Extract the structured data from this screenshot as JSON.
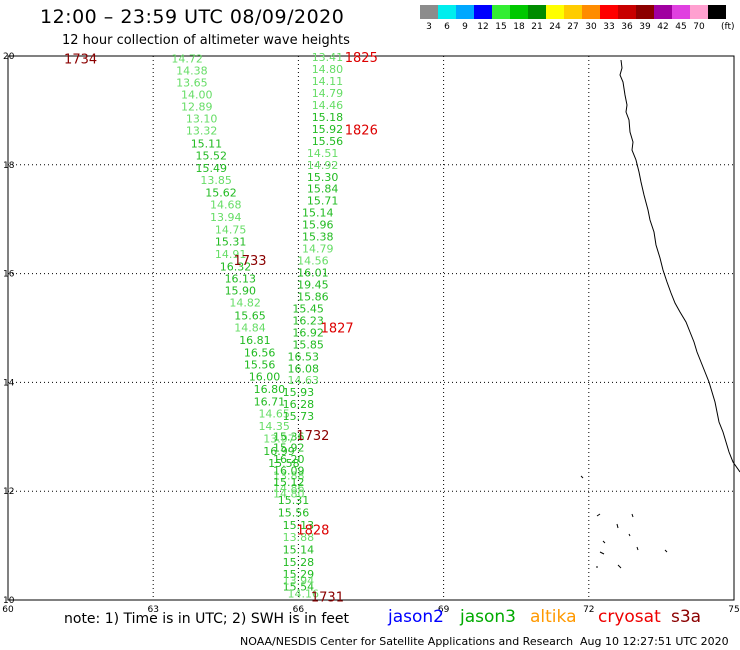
{
  "header": {
    "title": "12:00 – 23:59 UTC 08/09/2020",
    "subtitle": "12 hour collection of altimeter wave heights"
  },
  "color_scale": {
    "unit": "(ft)",
    "bins": [
      {
        "label": "3",
        "color": "#8c8c8c"
      },
      {
        "label": "6",
        "color": "#00eeee"
      },
      {
        "label": "9",
        "color": "#00a8ff"
      },
      {
        "label": "12",
        "color": "#0000ff"
      },
      {
        "label": "15",
        "color": "#33ee33"
      },
      {
        "label": "18",
        "color": "#00c800"
      },
      {
        "label": "21",
        "color": "#008c00"
      },
      {
        "label": "24",
        "color": "#ffff00"
      },
      {
        "label": "27",
        "color": "#ffcc00"
      },
      {
        "label": "30",
        "color": "#ff8c00"
      },
      {
        "label": "33",
        "color": "#ff0000"
      },
      {
        "label": "36",
        "color": "#c80000"
      },
      {
        "label": "39",
        "color": "#8c0000"
      },
      {
        "label": "42",
        "color": "#a000a0"
      },
      {
        "label": "45",
        "color": "#e040e0"
      },
      {
        "label": "70",
        "color": "#ffa0d0"
      },
      {
        "label": "",
        "color": "#000000"
      }
    ]
  },
  "map": {
    "lon_ticks": [
      "60",
      "63",
      "66",
      "69",
      "72",
      "75"
    ],
    "lat_ticks": [
      "20",
      "18",
      "16",
      "14",
      "12",
      "10"
    ],
    "tracks": [
      {
        "label_color": "#8b0000",
        "time_labels": [
          {
            "text": "1734",
            "lon": 61.5,
            "lat": 19.95
          },
          {
            "text": "1733",
            "lon": 65.0,
            "lat": 16.25
          }
        ],
        "points": [
          {
            "v": "14.72",
            "lon": 63.7,
            "lat": 19.95,
            "c": "#66dd66"
          },
          {
            "v": "14.38",
            "lon": 63.8,
            "lat": 19.73,
            "c": "#66dd66"
          },
          {
            "v": "13.65",
            "lon": 63.8,
            "lat": 19.51,
            "c": "#66dd66"
          },
          {
            "v": "14.00",
            "lon": 63.9,
            "lat": 19.29,
            "c": "#66dd66"
          },
          {
            "v": "12.89",
            "lon": 63.9,
            "lat": 19.07,
            "c": "#66dd66"
          },
          {
            "v": "13.10",
            "lon": 64.0,
            "lat": 18.85,
            "c": "#66dd66"
          },
          {
            "v": "13.32",
            "lon": 64.0,
            "lat": 18.63,
            "c": "#66dd66"
          },
          {
            "v": "15.11",
            "lon": 64.1,
            "lat": 18.39,
            "c": "#22bb22"
          },
          {
            "v": "15.52",
            "lon": 64.2,
            "lat": 18.17,
            "c": "#22bb22"
          },
          {
            "v": "15.49",
            "lon": 64.2,
            "lat": 17.94,
            "c": "#22bb22"
          },
          {
            "v": "13.85",
            "lon": 64.3,
            "lat": 17.72,
            "c": "#66dd66"
          },
          {
            "v": "15.62",
            "lon": 64.4,
            "lat": 17.49,
            "c": "#22bb22"
          },
          {
            "v": "14.68",
            "lon": 64.5,
            "lat": 17.27,
            "c": "#66dd66"
          },
          {
            "v": "13.94",
            "lon": 64.5,
            "lat": 17.04,
            "c": "#66dd66"
          },
          {
            "v": "14.75",
            "lon": 64.6,
            "lat": 16.81,
            "c": "#66dd66"
          },
          {
            "v": "15.31",
            "lon": 64.6,
            "lat": 16.59,
            "c": "#22bb22"
          },
          {
            "v": "14.91",
            "lon": 64.6,
            "lat": 16.36,
            "c": "#66dd66"
          },
          {
            "v": "16.32",
            "lon": 64.7,
            "lat": 16.13,
            "c": "#22bb22"
          },
          {
            "v": "16.13",
            "lon": 64.8,
            "lat": 15.91,
            "c": "#22bb22"
          },
          {
            "v": "15.90",
            "lon": 64.8,
            "lat": 15.69,
            "c": "#22bb22"
          },
          {
            "v": "14.82",
            "lon": 64.9,
            "lat": 15.47,
            "c": "#66dd66"
          },
          {
            "v": "15.65",
            "lon": 65.0,
            "lat": 15.23,
            "c": "#22bb22"
          },
          {
            "v": "14.84",
            "lon": 65.0,
            "lat": 15.01,
            "c": "#66dd66"
          },
          {
            "v": "16.81",
            "lon": 65.1,
            "lat": 14.78,
            "c": "#22bb22"
          },
          {
            "v": "16.56",
            "lon": 65.2,
            "lat": 14.55,
            "c": "#22bb22"
          },
          {
            "v": "15.56",
            "lon": 65.2,
            "lat": 14.33,
            "c": "#22bb22"
          },
          {
            "v": "16.00",
            "lon": 65.3,
            "lat": 14.11,
            "c": "#22bb22"
          },
          {
            "v": "16.80",
            "lon": 65.4,
            "lat": 13.88,
            "c": "#22bb22"
          },
          {
            "v": "16.71",
            "lon": 65.4,
            "lat": 13.65,
            "c": "#22bb22"
          },
          {
            "v": "14.65",
            "lon": 65.5,
            "lat": 13.43,
            "c": "#66dd66"
          },
          {
            "v": "14.35",
            "lon": 65.5,
            "lat": 13.2,
            "c": "#66dd66"
          },
          {
            "v": "13.97",
            "lon": 65.6,
            "lat": 12.97,
            "c": "#66dd66"
          },
          {
            "v": "16.99",
            "lon": 65.6,
            "lat": 12.74,
            "c": "#22bb22"
          },
          {
            "v": "15.58",
            "lon": 65.7,
            "lat": 12.52,
            "c": "#22bb22"
          },
          {
            "v": "13.88",
            "lon": 65.8,
            "lat": 12.29,
            "c": "#66dd66"
          },
          {
            "v": "14.86",
            "lon": 65.8,
            "lat": 12.06,
            "c": "#66dd66"
          },
          {
            "v": "15.31",
            "lon": 65.9,
            "lat": 11.84,
            "c": "#22bb22"
          },
          {
            "v": "15.56",
            "lon": 65.9,
            "lat": 11.61,
            "c": "#22bb22"
          },
          {
            "v": "15.13",
            "lon": 66.0,
            "lat": 11.38,
            "c": "#22bb22"
          },
          {
            "v": "13.88",
            "lon": 66.0,
            "lat": 11.16,
            "c": "#66dd66"
          },
          {
            "v": "15.14",
            "lon": 66.0,
            "lat": 10.93,
            "c": "#22bb22"
          },
          {
            "v": "15.28",
            "lon": 66.0,
            "lat": 10.7,
            "c": "#22bb22"
          },
          {
            "v": "15.29",
            "lon": 66.0,
            "lat": 10.48,
            "c": "#22bb22"
          },
          {
            "v": "15.54",
            "lon": 66.0,
            "lat": 10.25,
            "c": "#22bb22"
          }
        ]
      },
      {
        "label_color": "#8b0000",
        "time_labels": [
          {
            "text": "1732",
            "lon": 66.3,
            "lat": 13.03
          },
          {
            "text": "1731",
            "lon": 66.6,
            "lat": 10.06
          }
        ],
        "points": [
          {
            "v": "15.36",
            "lon": 65.8,
            "lat": 13.01,
            "c": "#22bb22"
          },
          {
            "v": "15.92",
            "lon": 65.8,
            "lat": 12.8,
            "c": "#22bb22"
          },
          {
            "v": "16.20",
            "lon": 65.8,
            "lat": 12.59,
            "c": "#22bb22"
          },
          {
            "v": "16.09",
            "lon": 65.8,
            "lat": 12.38,
            "c": "#22bb22"
          },
          {
            "v": "15.12",
            "lon": 65.8,
            "lat": 12.17,
            "c": "#22bb22"
          },
          {
            "v": "14.80",
            "lon": 65.8,
            "lat": 11.96,
            "c": "#66dd66"
          },
          {
            "v": "13.94",
            "lon": 66.0,
            "lat": 10.36,
            "c": "#66dd66"
          },
          {
            "v": "14.16",
            "lon": 66.1,
            "lat": 10.12,
            "c": "#66dd66"
          }
        ]
      },
      {
        "label_color": "#dd0000",
        "time_labels": [
          {
            "text": "1825",
            "lon": 67.3,
            "lat": 19.98
          },
          {
            "text": "1826",
            "lon": 67.3,
            "lat": 18.65
          },
          {
            "text": "1827",
            "lon": 66.8,
            "lat": 15.01
          },
          {
            "text": "1828",
            "lon": 66.3,
            "lat": 11.3
          }
        ],
        "points": [
          {
            "v": "13.41",
            "lon": 66.6,
            "lat": 19.98,
            "c": "#66dd66"
          },
          {
            "v": "14.80",
            "lon": 66.6,
            "lat": 19.76,
            "c": "#66dd66"
          },
          {
            "v": "14.11",
            "lon": 66.6,
            "lat": 19.54,
            "c": "#66dd66"
          },
          {
            "v": "14.79",
            "lon": 66.6,
            "lat": 19.32,
            "c": "#66dd66"
          },
          {
            "v": "14.46",
            "lon": 66.6,
            "lat": 19.1,
            "c": "#66dd66"
          },
          {
            "v": "15.18",
            "lon": 66.6,
            "lat": 18.88,
            "c": "#22bb22"
          },
          {
            "v": "15.92",
            "lon": 66.6,
            "lat": 18.66,
            "c": "#22bb22"
          },
          {
            "v": "15.56",
            "lon": 66.6,
            "lat": 18.44,
            "c": "#22bb22"
          },
          {
            "v": "14.51",
            "lon": 66.5,
            "lat": 18.22,
            "c": "#66dd66"
          },
          {
            "v": "14.92",
            "lon": 66.5,
            "lat": 18.0,
            "c": "#66dd66"
          },
          {
            "v": "15.30",
            "lon": 66.5,
            "lat": 17.78,
            "c": "#22bb22"
          },
          {
            "v": "15.84",
            "lon": 66.5,
            "lat": 17.56,
            "c": "#22bb22"
          },
          {
            "v": "15.71",
            "lon": 66.5,
            "lat": 17.34,
            "c": "#22bb22"
          },
          {
            "v": "15.14",
            "lon": 66.4,
            "lat": 17.12,
            "c": "#22bb22"
          },
          {
            "v": "15.96",
            "lon": 66.4,
            "lat": 16.9,
            "c": "#22bb22"
          },
          {
            "v": "15.38",
            "lon": 66.4,
            "lat": 16.68,
            "c": "#22bb22"
          },
          {
            "v": "14.79",
            "lon": 66.4,
            "lat": 16.46,
            "c": "#66dd66"
          },
          {
            "v": "14.56",
            "lon": 66.3,
            "lat": 16.24,
            "c": "#66dd66"
          },
          {
            "v": "16.01",
            "lon": 66.3,
            "lat": 16.02,
            "c": "#22bb22"
          },
          {
            "v": "19.45",
            "lon": 66.3,
            "lat": 15.8,
            "c": "#22bb22"
          },
          {
            "v": "15.86",
            "lon": 66.3,
            "lat": 15.58,
            "c": "#22bb22"
          },
          {
            "v": "15.45",
            "lon": 66.2,
            "lat": 15.36,
            "c": "#22bb22"
          },
          {
            "v": "16.23",
            "lon": 66.2,
            "lat": 15.14,
            "c": "#22bb22"
          },
          {
            "v": "16.92",
            "lon": 66.2,
            "lat": 14.92,
            "c": "#22bb22"
          },
          {
            "v": "15.85",
            "lon": 66.2,
            "lat": 14.7,
            "c": "#22bb22"
          },
          {
            "v": "16.53",
            "lon": 66.1,
            "lat": 14.48,
            "c": "#22bb22"
          },
          {
            "v": "16.08",
            "lon": 66.1,
            "lat": 14.26,
            "c": "#22bb22"
          },
          {
            "v": "14.63",
            "lon": 66.1,
            "lat": 14.04,
            "c": "#66dd66"
          },
          {
            "v": "15.93",
            "lon": 66.0,
            "lat": 13.82,
            "c": "#22bb22"
          },
          {
            "v": "16.28",
            "lon": 66.0,
            "lat": 13.6,
            "c": "#22bb22"
          },
          {
            "v": "15.73",
            "lon": 66.0,
            "lat": 13.38,
            "c": "#22bb22"
          }
        ]
      }
    ]
  },
  "note": "note: 1) Time is in UTC; 2) SWH is in feet",
  "satellites": [
    {
      "name": "jason2",
      "color": "#0000ff"
    },
    {
      "name": "jason3",
      "color": "#00aa00"
    },
    {
      "name": "altika",
      "color": "#ff9900"
    },
    {
      "name": "cryosat",
      "color": "#ee0000"
    },
    {
      "name": "s3a",
      "color": "#8b0000"
    }
  ],
  "footer": {
    "source": "NOAA/NESDIS Center for Satellite Applications and Research",
    "timestamp": "Aug 10 12:27:51 UTC 2020"
  }
}
